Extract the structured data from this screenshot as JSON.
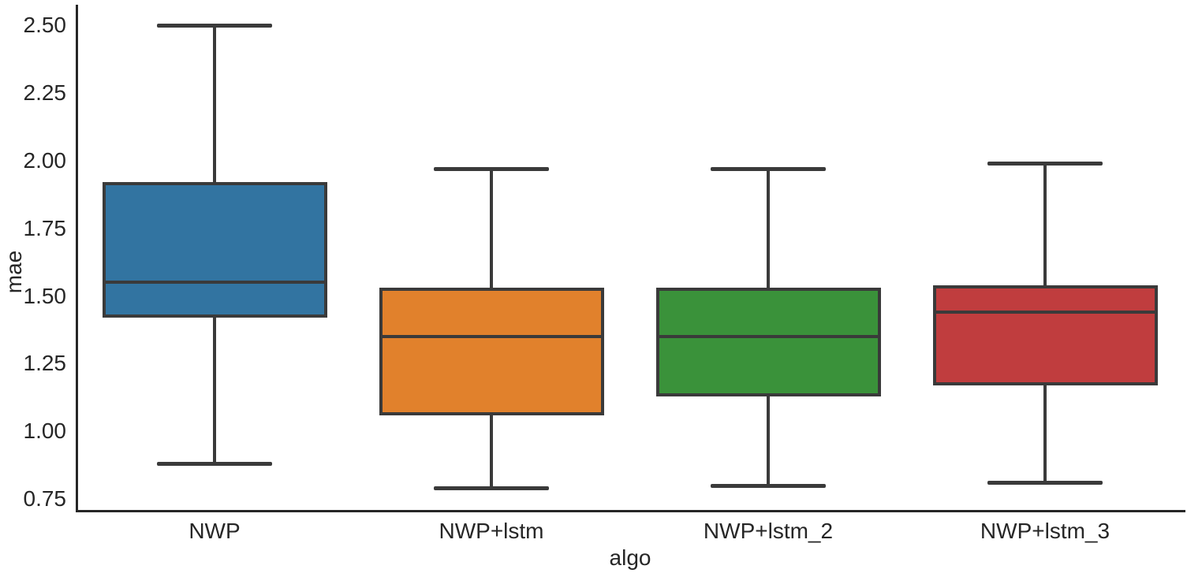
{
  "chart_data": {
    "type": "box",
    "title": "",
    "xlabel": "algo",
    "ylabel": "mae",
    "categories": [
      "NWP",
      "NWP+lstm",
      "NWP+lstm_2",
      "NWP+lstm_3"
    ],
    "series": [
      {
        "label": "NWP",
        "fill_color": "#3274a1",
        "whisker_low": 0.88,
        "q1": 1.42,
        "median": 1.55,
        "q3": 1.92,
        "whisker_high": 2.5
      },
      {
        "label": "NWP+lstm",
        "fill_color": "#e1812c",
        "whisker_low": 0.79,
        "q1": 1.06,
        "median": 1.35,
        "q3": 1.53,
        "whisker_high": 1.97
      },
      {
        "label": "NWP+lstm_2",
        "fill_color": "#3a923a",
        "whisker_low": 0.8,
        "q1": 1.13,
        "median": 1.35,
        "q3": 1.53,
        "whisker_high": 1.97
      },
      {
        "label": "NWP+lstm_3",
        "fill_color": "#c03d3e",
        "whisker_low": 0.81,
        "q1": 1.17,
        "median": 1.44,
        "q3": 1.54,
        "whisker_high": 1.99
      }
    ],
    "y_ticks": [
      "2.50",
      "2.25",
      "2.00",
      "1.75",
      "1.50",
      "1.25",
      "1.00",
      "0.75"
    ],
    "ylim": [
      0.7,
      2.59
    ],
    "grid": false,
    "legend": "none",
    "edge_color": "#3a3a3a",
    "spine_color": "#262626",
    "outliers": []
  }
}
